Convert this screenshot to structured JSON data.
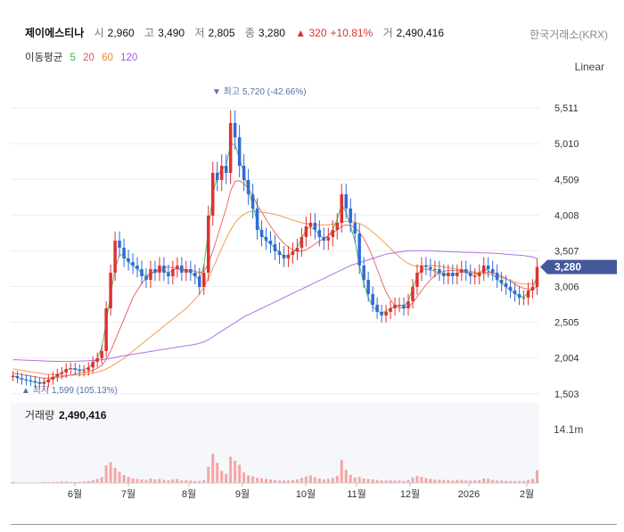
{
  "header": {
    "name": "제이에스티나",
    "open_label": "시",
    "open": "2,960",
    "high_label": "고",
    "high": "3,490",
    "low_label": "저",
    "low": "2,805",
    "close_label": "종",
    "close": "3,280",
    "change": "▲ 320",
    "change_pct": "+10.81%",
    "volume_label": "거",
    "volume": "2,490,416",
    "exchange": "한국거래소(KRX)"
  },
  "ma_legend": {
    "label": "이동평균",
    "items": [
      {
        "label": "5",
        "color": "#2fb344"
      },
      {
        "label": "20",
        "color": "#e8504f"
      },
      {
        "label": "60",
        "color": "#f08c2e"
      },
      {
        "label": "120",
        "color": "#a05be0"
      }
    ]
  },
  "scale_toggle": "Linear",
  "volume_panel": {
    "label": "거래량",
    "value": "2,490,416",
    "scale_label": "14.1m"
  },
  "chart_data": {
    "type": "candlestick",
    "x_ticks": [
      "6월",
      "7월",
      "8월",
      "9월",
      "10월",
      "11월",
      "12월",
      "2026",
      "2월"
    ],
    "y_ticks": [
      5511,
      5010,
      4509,
      4008,
      3507,
      3006,
      2505,
      2004,
      1503
    ],
    "ylim": [
      1400,
      5900
    ],
    "last_price": "3,280",
    "annotations": {
      "max": "▼ 최고 5,720 (-42.66%)",
      "min": "▲ 최저 1,599 (105.13%)"
    },
    "close_series": [
      1750,
      1720,
      1700,
      1690,
      1680,
      1660,
      1640,
      1660,
      1700,
      1740,
      1780,
      1800,
      1850,
      1860,
      1840,
      1820,
      1830,
      1870,
      1950,
      2000,
      2100,
      2700,
      3200,
      3650,
      3550,
      3400,
      3350,
      3300,
      3250,
      3150,
      3100,
      3250,
      3200,
      3300,
      3200,
      3150,
      3250,
      3300,
      3200,
      3250,
      3200,
      3150,
      3000,
      3200,
      4000,
      4600,
      4500,
      4700,
      4600,
      5300,
      5100,
      4700,
      4500,
      4300,
      4100,
      3800,
      3700,
      3650,
      3600,
      3500,
      3450,
      3400,
      3450,
      3500,
      3550,
      3700,
      3850,
      3900,
      3800,
      3700,
      3650,
      3700,
      3800,
      3900,
      4300,
      4100,
      3900,
      3750,
      3300,
      3100,
      2900,
      2750,
      2650,
      2600,
      2650,
      2700,
      2750,
      2750,
      2700,
      2800,
      3000,
      3200,
      3300,
      3280,
      3250,
      3250,
      3200,
      3150,
      3200,
      3150,
      3200,
      3250,
      3200,
      3150,
      3150,
      3200,
      3300,
      3250,
      3200,
      3100,
      3050,
      3000,
      2950,
      2900,
      2850,
      2850,
      2950,
      3000,
      3280
    ],
    "ma_series": [
      {
        "name": "5",
        "values": [
          1760,
          1730,
          1710,
          1695,
          1680,
          1665,
          1655,
          1665,
          1690,
          1725,
          1760,
          1800,
          1840,
          1855,
          1845,
          1835,
          1840,
          1870,
          1930,
          2000,
          2150,
          2500,
          2900,
          3250,
          3450,
          3450,
          3350,
          3300,
          3250,
          3200,
          3150,
          3200,
          3200,
          3250,
          3220,
          3200,
          3230,
          3260,
          3230,
          3230,
          3200,
          3150,
          3100,
          3300,
          3800,
          4300,
          4550,
          4650,
          4700,
          5000,
          5000,
          4800,
          4600,
          4350,
          4150,
          3900,
          3750,
          3650,
          3600,
          3550,
          3480,
          3430,
          3440,
          3480,
          3550,
          3680,
          3800,
          3850,
          3800,
          3730,
          3680,
          3720,
          3800,
          3950,
          4150,
          4050,
          3850,
          3650,
          3300,
          3050,
          2850,
          2730,
          2660,
          2640,
          2660,
          2700,
          2730,
          2740,
          2730,
          2800,
          2980,
          3150,
          3250,
          3250,
          3240,
          3220,
          3190,
          3170,
          3180,
          3170,
          3190,
          3220,
          3200,
          3170,
          3160,
          3190,
          3260,
          3230,
          3180,
          3110,
          3050,
          3000,
          2950,
          2910,
          2870,
          2860,
          2920,
          2990,
          3150
        ]
      },
      {
        "name": "20",
        "values": [
          1790,
          1780,
          1770,
          1760,
          1750,
          1740,
          1730,
          1720,
          1720,
          1725,
          1730,
          1740,
          1750,
          1765,
          1780,
          1790,
          1800,
          1810,
          1830,
          1860,
          1900,
          1980,
          2100,
          2250,
          2400,
          2550,
          2700,
          2850,
          2950,
          3050,
          3120,
          3180,
          3220,
          3250,
          3270,
          3280,
          3270,
          3260,
          3250,
          3240,
          3230,
          3220,
          3200,
          3220,
          3330,
          3500,
          3700,
          3900,
          4100,
          4350,
          4480,
          4490,
          4450,
          4380,
          4280,
          4150,
          4050,
          3950,
          3850,
          3760,
          3680,
          3610,
          3560,
          3520,
          3500,
          3500,
          3520,
          3560,
          3600,
          3640,
          3680,
          3720,
          3760,
          3800,
          3850,
          3870,
          3860,
          3830,
          3770,
          3680,
          3560,
          3420,
          3250,
          3080,
          2930,
          2820,
          2740,
          2710,
          2700,
          2720,
          2780,
          2860,
          2950,
          3030,
          3100,
          3160,
          3200,
          3220,
          3230,
          3230,
          3230,
          3220,
          3210,
          3200,
          3190,
          3190,
          3200,
          3210,
          3200,
          3180,
          3150,
          3120,
          3080,
          3040,
          3010,
          2980,
          2970,
          2970,
          3000
        ]
      },
      {
        "name": "60",
        "values": [
          1850,
          1840,
          1830,
          1820,
          1810,
          1800,
          1790,
          1780,
          1775,
          1770,
          1765,
          1760,
          1760,
          1760,
          1762,
          1765,
          1770,
          1778,
          1790,
          1805,
          1825,
          1850,
          1880,
          1920,
          1960,
          2000,
          2050,
          2100,
          2150,
          2200,
          2250,
          2300,
          2350,
          2400,
          2450,
          2500,
          2550,
          2600,
          2650,
          2700,
          2760,
          2830,
          2900,
          3000,
          3120,
          3260,
          3400,
          3540,
          3680,
          3800,
          3900,
          3970,
          4020,
          4050,
          4060,
          4060,
          4050,
          4040,
          4030,
          4020,
          4000,
          3980,
          3960,
          3940,
          3920,
          3900,
          3890,
          3880,
          3870,
          3870,
          3870,
          3870,
          3880,
          3890,
          3910,
          3920,
          3920,
          3910,
          3890,
          3860,
          3820,
          3770,
          3720,
          3660,
          3600,
          3540,
          3480,
          3420,
          3370,
          3330,
          3300,
          3290,
          3290,
          3300,
          3300,
          3300,
          3290,
          3280,
          3270,
          3260,
          3250,
          3240,
          3230,
          3220,
          3210,
          3200,
          3190,
          3180,
          3170,
          3150,
          3130,
          3110,
          3090,
          3070,
          3050,
          3040,
          3040,
          3050,
          3060
        ]
      },
      {
        "name": "120",
        "values": [
          1980,
          1978,
          1975,
          1972,
          1970,
          1968,
          1965,
          1962,
          1960,
          1958,
          1956,
          1955,
          1955,
          1956,
          1958,
          1960,
          1962,
          1965,
          1970,
          1975,
          1980,
          1990,
          2000,
          2010,
          2025,
          2035,
          2045,
          2055,
          2065,
          2075,
          2085,
          2095,
          2105,
          2115,
          2125,
          2135,
          2145,
          2155,
          2165,
          2175,
          2185,
          2195,
          2210,
          2230,
          2260,
          2300,
          2340,
          2380,
          2420,
          2460,
          2500,
          2540,
          2580,
          2610,
          2640,
          2670,
          2700,
          2730,
          2760,
          2790,
          2820,
          2850,
          2880,
          2910,
          2940,
          2970,
          3000,
          3030,
          3060,
          3090,
          3120,
          3150,
          3180,
          3210,
          3240,
          3270,
          3300,
          3320,
          3340,
          3360,
          3380,
          3400,
          3420,
          3440,
          3460,
          3470,
          3480,
          3490,
          3500,
          3505,
          3507,
          3508,
          3508,
          3507,
          3505,
          3503,
          3500,
          3498,
          3495,
          3492,
          3490,
          3488,
          3486,
          3484,
          3482,
          3480,
          3478,
          3476,
          3474,
          3470,
          3465,
          3460,
          3455,
          3450,
          3445,
          3440,
          3430,
          3420,
          3400
        ]
      }
    ],
    "volume_series": [
      0.2,
      0.1,
      0.1,
      0.1,
      0.1,
      0.1,
      0.1,
      0.2,
      0.2,
      0.2,
      0.2,
      0.3,
      0.3,
      0.2,
      0.2,
      0.2,
      0.3,
      0.4,
      0.6,
      0.8,
      1.2,
      3.5,
      4.1,
      3.0,
      2.2,
      1.6,
      1.2,
      0.9,
      0.8,
      0.7,
      0.6,
      0.9,
      0.7,
      0.8,
      0.6,
      0.5,
      0.7,
      0.8,
      0.5,
      0.6,
      0.5,
      0.4,
      0.4,
      0.6,
      3.2,
      5.8,
      4.0,
      2.4,
      1.8,
      5.2,
      4.4,
      3.6,
      2.1,
      1.5,
      1.3,
      1.0,
      0.9,
      0.8,
      0.7,
      0.6,
      0.5,
      0.5,
      0.5,
      0.6,
      0.7,
      1.0,
      1.3,
      1.5,
      1.1,
      0.9,
      0.7,
      0.8,
      1.0,
      1.4,
      4.6,
      2.6,
      1.6,
      1.1,
      1.2,
      0.9,
      0.8,
      0.7,
      0.6,
      0.5,
      0.5,
      0.5,
      0.5,
      0.5,
      0.4,
      0.6,
      1.1,
      1.4,
      1.2,
      1.0,
      0.8,
      0.7,
      0.6,
      0.6,
      0.6,
      0.5,
      0.6,
      0.6,
      0.5,
      0.5,
      0.5,
      0.6,
      0.9,
      0.8,
      0.6,
      0.5,
      0.5,
      0.4,
      0.4,
      0.4,
      0.4,
      0.4,
      0.6,
      0.8,
      2.5
    ]
  }
}
